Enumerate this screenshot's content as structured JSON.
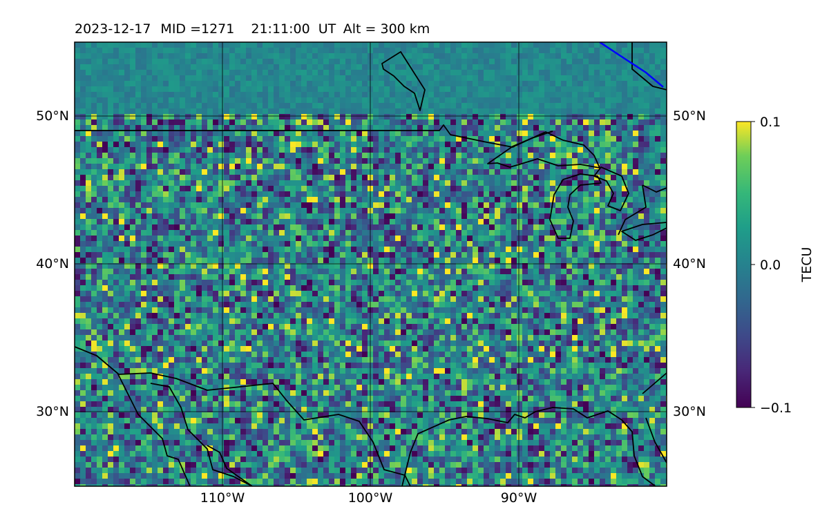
{
  "title": {
    "date": "2023-12-17",
    "mid": "MID =1271",
    "time": "21:11:00",
    "time_unit": "UT",
    "altitude": "Alt = 300 km"
  },
  "map": {
    "lat_ticks": [
      "50°N",
      "40°N",
      "30°N"
    ],
    "lon_ticks": [
      "110°W",
      "100°W",
      "90°W"
    ],
    "lat_range": [
      25,
      55
    ],
    "lon_range": [
      -120,
      -80
    ],
    "gridlines": true
  },
  "colorbar": {
    "label": "TECU",
    "ticks": [
      "0.1",
      "0.0",
      "−0.1"
    ],
    "range": [
      -0.1,
      0.1
    ],
    "colormap": "viridis"
  },
  "colors": {
    "coastline": "#000000",
    "highlight_line": "#0000ff",
    "grid": "#000000"
  }
}
